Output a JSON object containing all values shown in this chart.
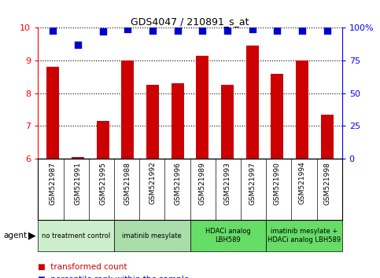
{
  "title": "GDS4047 / 210891_s_at",
  "samples": [
    "GSM521987",
    "GSM521991",
    "GSM521995",
    "GSM521988",
    "GSM521992",
    "GSM521996",
    "GSM521989",
    "GSM521993",
    "GSM521997",
    "GSM521990",
    "GSM521994",
    "GSM521998"
  ],
  "bar_values": [
    8.8,
    6.05,
    7.15,
    9.0,
    8.25,
    8.3,
    9.15,
    8.25,
    9.45,
    8.6,
    9.0,
    7.35
  ],
  "percentile_values": [
    98,
    87,
    97,
    99,
    98,
    98,
    98,
    98,
    99,
    98,
    98,
    98
  ],
  "bar_color": "#cc0000",
  "dot_color": "#0000cc",
  "ylim_left": [
    6,
    10
  ],
  "ylim_right": [
    0,
    100
  ],
  "yticks_left": [
    6,
    7,
    8,
    9,
    10
  ],
  "yticks_right": [
    0,
    25,
    50,
    75,
    100
  ],
  "ytick_labels_right": [
    "0",
    "25",
    "50",
    "75",
    "100%"
  ],
  "groups": [
    {
      "label": "no treatment control",
      "start": 0,
      "end": 3,
      "color": "#cceecc"
    },
    {
      "label": "imatinib mesylate",
      "start": 3,
      "end": 6,
      "color": "#aaddaa"
    },
    {
      "label": "HDACi analog\nLBH589",
      "start": 6,
      "end": 9,
      "color": "#66dd66"
    },
    {
      "label": "imatinib mesylate +\nHDACi analog LBH589",
      "start": 9,
      "end": 12,
      "color": "#66dd66"
    }
  ],
  "agent_label": "agent",
  "bar_width": 0.5,
  "dot_size": 30,
  "sample_box_color": "#cccccc",
  "legend_bar_color": "#cc0000",
  "legend_dot_color": "#0000cc"
}
